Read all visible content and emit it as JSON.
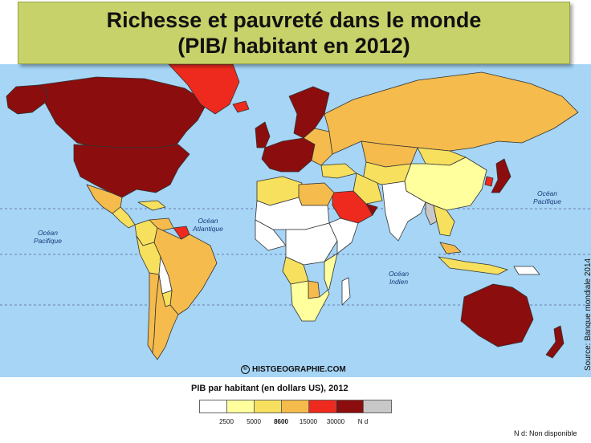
{
  "title": {
    "line1": "Richesse et pauvreté dans le monde",
    "line2": "(PIB/ habitant en 2012)"
  },
  "oceans": [
    {
      "id": "pacifique-est",
      "text": "Océan\nPacifique"
    },
    {
      "id": "atlantique",
      "text": "Océan\nAtlantique"
    },
    {
      "id": "indien",
      "text": "Océan\nIndien"
    },
    {
      "id": "pacifique-ouest",
      "text": "Océan\nPacifique"
    }
  ],
  "credit": {
    "text": "HISTGEOGRAPHIE.COM",
    "icon": "copyright-icon"
  },
  "source": "Source: Banque mondiale 2014",
  "legend": {
    "title": "PIB par habitant (en dollars US), 2012",
    "classes": [
      {
        "color": "#ffffff"
      },
      {
        "color": "#ffff9e"
      },
      {
        "color": "#f6e05e"
      },
      {
        "color": "#f5bb4d"
      },
      {
        "color": "#ee2a1e"
      },
      {
        "color": "#8b0d0d"
      },
      {
        "color": "#c8c8c8"
      }
    ],
    "thresholds": [
      "2500",
      "5000",
      "8600",
      "15000",
      "30000",
      "N d"
    ],
    "note": "N d: Non disponible"
  },
  "map_colors": {
    "ocean": "#a6d5f6",
    "white": "#ffffff",
    "light_yellow": "#ffff9e",
    "yellow": "#f6e05e",
    "orange": "#f5bb4d",
    "red": "#ee2a1e",
    "dark_red": "#8b0d0d",
    "grey": "#c8c8c8",
    "border": "#333333"
  },
  "regions": [
    {
      "name": "Canada",
      "class": "dark_red"
    },
    {
      "name": "Alaska",
      "class": "dark_red"
    },
    {
      "name": "United States",
      "class": "dark_red"
    },
    {
      "name": "Greenland",
      "class": "red"
    },
    {
      "name": "Mexico",
      "class": "orange"
    },
    {
      "name": "Central America",
      "class": "yellow"
    },
    {
      "name": "Caribbean",
      "class": "yellow"
    },
    {
      "name": "Colombia",
      "class": "yellow"
    },
    {
      "name": "Venezuela",
      "class": "orange"
    },
    {
      "name": "Guyana region",
      "class": "red"
    },
    {
      "name": "Peru",
      "class": "yellow"
    },
    {
      "name": "Brazil",
      "class": "orange"
    },
    {
      "name": "Bolivia",
      "class": "white"
    },
    {
      "name": "Paraguay",
      "class": "yellow"
    },
    {
      "name": "Argentina",
      "class": "orange"
    },
    {
      "name": "Chile",
      "class": "orange"
    },
    {
      "name": "Iceland",
      "class": "red"
    },
    {
      "name": "Scandinavia",
      "class": "dark_red"
    },
    {
      "name": "United Kingdom",
      "class": "dark_red"
    },
    {
      "name": "Western Europe",
      "class": "dark_red"
    },
    {
      "name": "Eastern Europe",
      "class": "orange"
    },
    {
      "name": "Russia",
      "class": "orange"
    },
    {
      "name": "Kazakhstan",
      "class": "orange"
    },
    {
      "name": "Central Asia",
      "class": "yellow"
    },
    {
      "name": "Turkey",
      "class": "yellow"
    },
    {
      "name": "North Africa",
      "class": "yellow"
    },
    {
      "name": "Libya",
      "class": "orange"
    },
    {
      "name": "Sahel",
      "class": "white"
    },
    {
      "name": "West Africa",
      "class": "white"
    },
    {
      "name": "Central Africa",
      "class": "white"
    },
    {
      "name": "East Africa",
      "class": "white"
    },
    {
      "name": "Angola",
      "class": "yellow"
    },
    {
      "name": "Southern Africa",
      "class": "light_yellow"
    },
    {
      "name": "Botswana",
      "class": "orange"
    },
    {
      "name": "Madagascar",
      "class": "white"
    },
    {
      "name": "Saudi Arabia",
      "class": "red"
    },
    {
      "name": "Gulf States",
      "class": "dark_red"
    },
    {
      "name": "Iran",
      "class": "yellow"
    },
    {
      "name": "India",
      "class": "white"
    },
    {
      "name": "China",
      "class": "light_yellow"
    },
    {
      "name": "Mongolia",
      "class": "yellow"
    },
    {
      "name": "Myanmar",
      "class": "grey"
    },
    {
      "name": "Southeast Asia",
      "class": "yellow"
    },
    {
      "name": "Malaysia",
      "class": "orange"
    },
    {
      "name": "Indonesia",
      "class": "yellow"
    },
    {
      "name": "Papua New Guinea",
      "class": "white"
    },
    {
      "name": "Japan",
      "class": "dark_red"
    },
    {
      "name": "South Korea",
      "class": "red"
    },
    {
      "name": "Australia",
      "class": "dark_red"
    },
    {
      "name": "New Zealand",
      "class": "dark_red"
    }
  ]
}
